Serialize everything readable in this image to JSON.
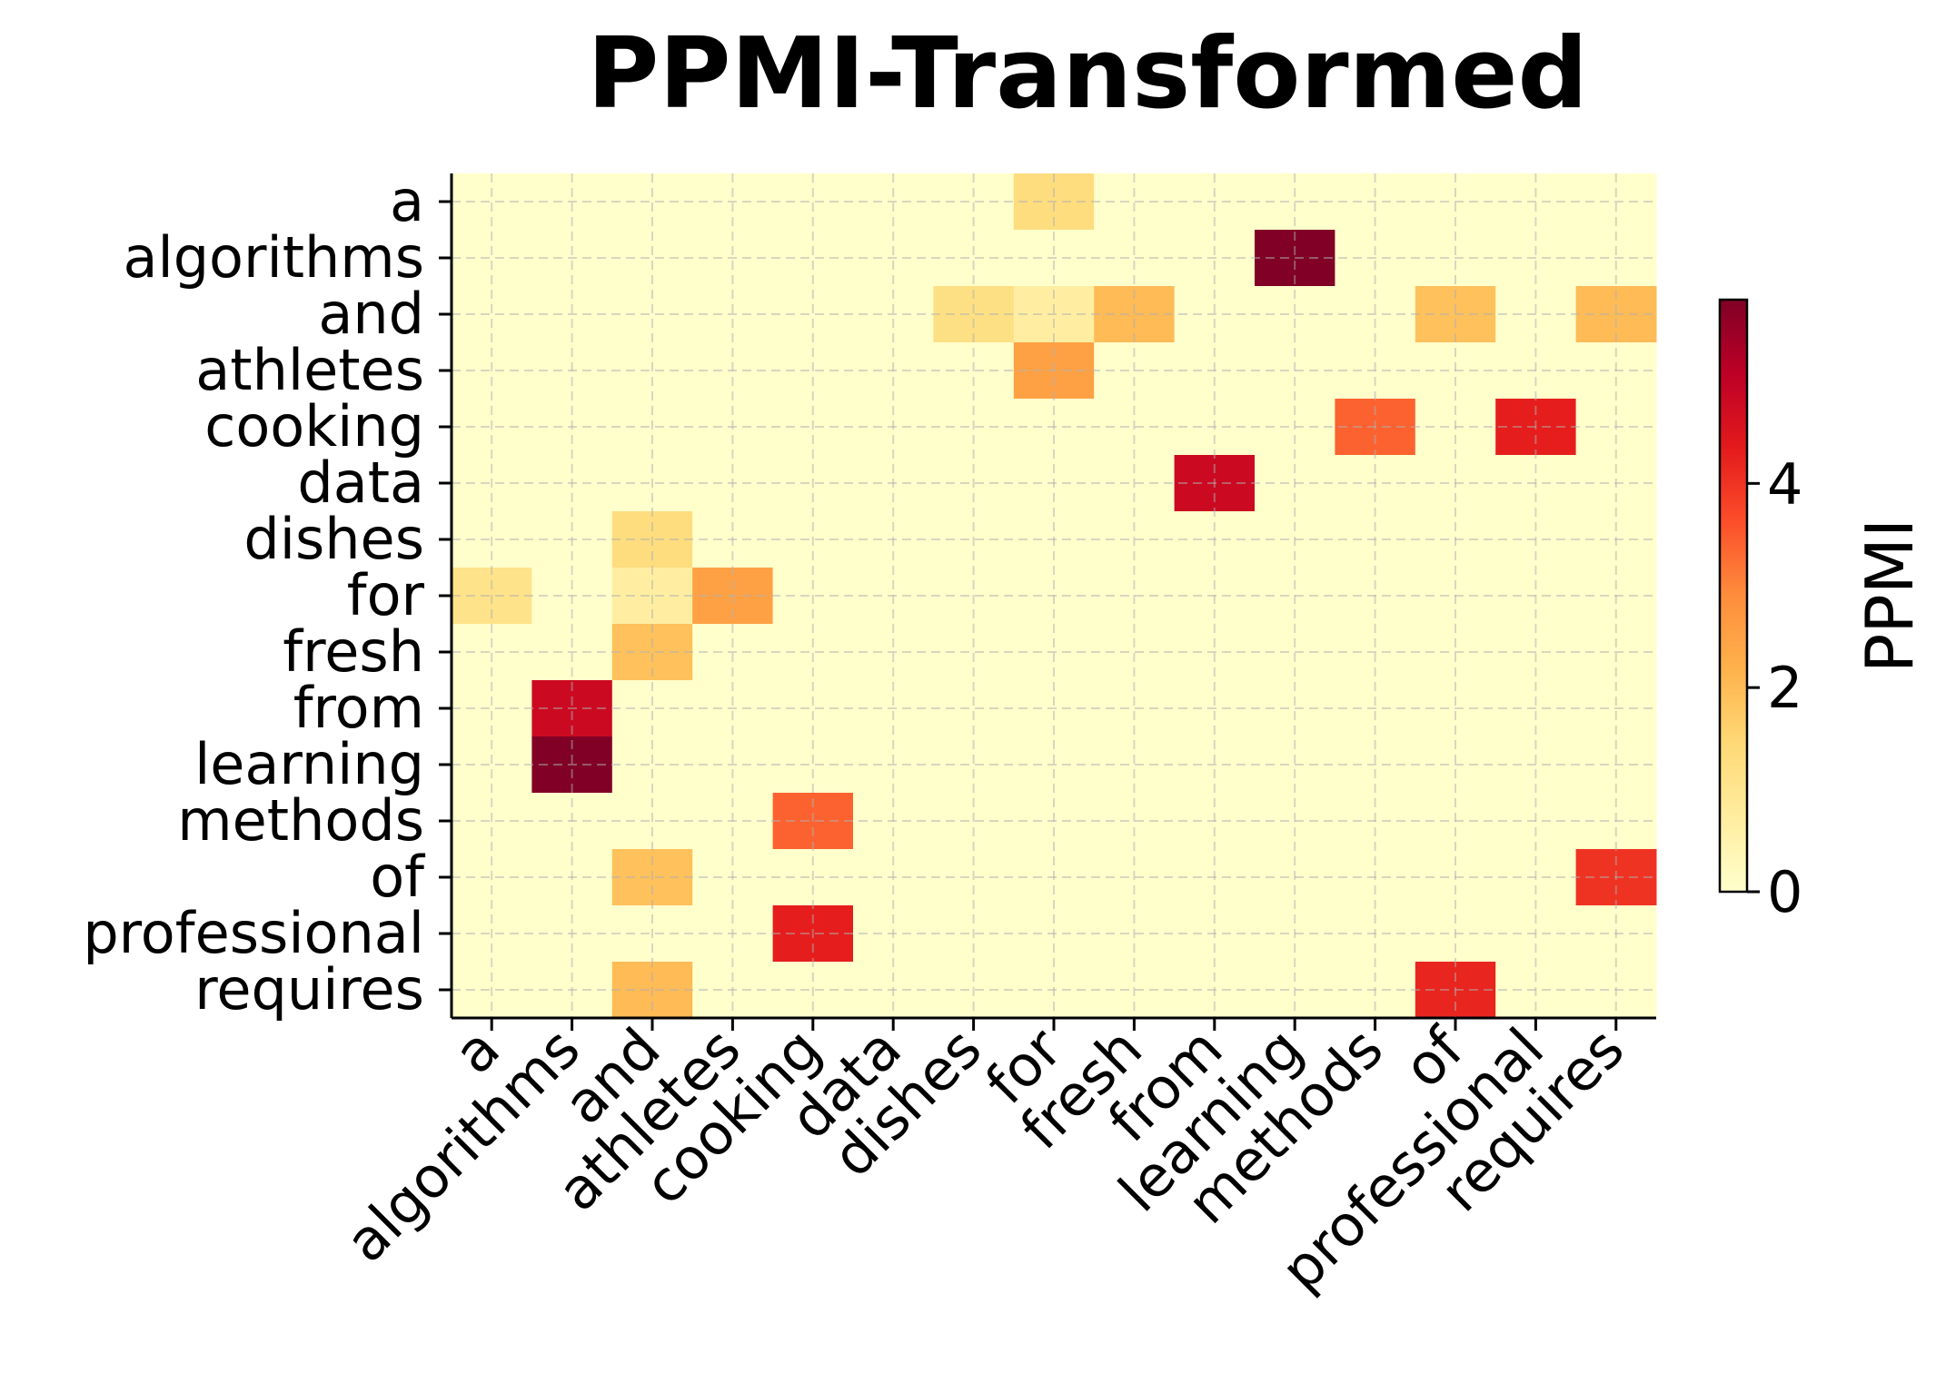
{
  "chart_data": {
    "type": "heatmap",
    "title": "PPMI-Transformed",
    "xlabel": "",
    "ylabel": "",
    "x_categories": [
      "a",
      "algorithms",
      "and",
      "athletes",
      "cooking",
      "data",
      "dishes",
      "for",
      "fresh",
      "from",
      "learning",
      "methods",
      "of",
      "professional",
      "requires"
    ],
    "y_categories": [
      "a",
      "algorithms",
      "and",
      "athletes",
      "cooking",
      "data",
      "dishes",
      "for",
      "fresh",
      "from",
      "learning",
      "methods",
      "of",
      "professional",
      "requires"
    ],
    "values": [
      [
        0,
        0,
        0,
        0,
        0,
        0,
        0,
        1.3,
        0,
        0,
        0,
        0,
        0,
        0,
        0
      ],
      [
        0,
        0,
        0,
        0,
        0,
        0,
        0,
        0,
        0,
        0,
        5.8,
        0,
        0,
        0,
        0
      ],
      [
        0,
        0,
        0,
        0,
        0,
        0,
        1.2,
        0.7,
        2.0,
        0,
        0,
        0,
        1.9,
        0,
        2.0
      ],
      [
        0,
        0,
        0,
        0,
        0,
        0,
        0,
        2.5,
        0,
        0,
        0,
        0,
        0,
        0,
        0
      ],
      [
        0,
        0,
        0,
        0,
        0,
        0,
        0,
        0,
        0,
        0,
        0,
        3.4,
        0,
        4.3,
        0
      ],
      [
        0,
        0,
        0,
        0,
        0,
        0,
        0,
        0,
        0,
        4.8,
        0,
        0,
        0,
        0,
        0
      ],
      [
        0,
        0,
        1.3,
        0,
        0,
        0,
        0,
        0,
        0,
        0,
        0,
        0,
        0,
        0,
        0
      ],
      [
        1.1,
        0,
        0.7,
        2.5,
        0,
        0,
        0,
        0,
        0,
        0,
        0,
        0,
        0,
        0,
        0
      ],
      [
        0,
        0,
        1.9,
        0,
        0,
        0,
        0,
        0,
        0,
        0,
        0,
        0,
        0,
        0,
        0
      ],
      [
        0,
        4.8,
        0,
        0,
        0,
        0,
        0,
        0,
        0,
        0,
        0,
        0,
        0,
        0,
        0
      ],
      [
        0,
        5.8,
        0,
        0,
        0,
        0,
        0,
        0,
        0,
        0,
        0,
        0,
        0,
        0,
        0
      ],
      [
        0,
        0,
        0,
        0,
        3.4,
        0,
        0,
        0,
        0,
        0,
        0,
        0,
        0,
        0,
        0
      ],
      [
        0,
        0,
        1.9,
        0,
        0,
        0,
        0,
        0,
        0,
        0,
        0,
        0,
        0,
        0,
        4.0
      ],
      [
        0,
        0,
        0,
        0,
        4.3,
        0,
        0,
        0,
        0,
        0,
        0,
        0,
        0,
        0,
        0
      ],
      [
        0,
        0,
        2.0,
        0,
        0,
        0,
        0,
        0,
        0,
        0,
        0,
        0,
        4.2,
        0,
        0
      ]
    ],
    "colormap": "YlOrRd",
    "vmin": 0,
    "vmax": 5.8,
    "grid": true,
    "colorbar": {
      "label": "PPMI",
      "ticks": [
        0,
        2,
        4
      ]
    }
  }
}
